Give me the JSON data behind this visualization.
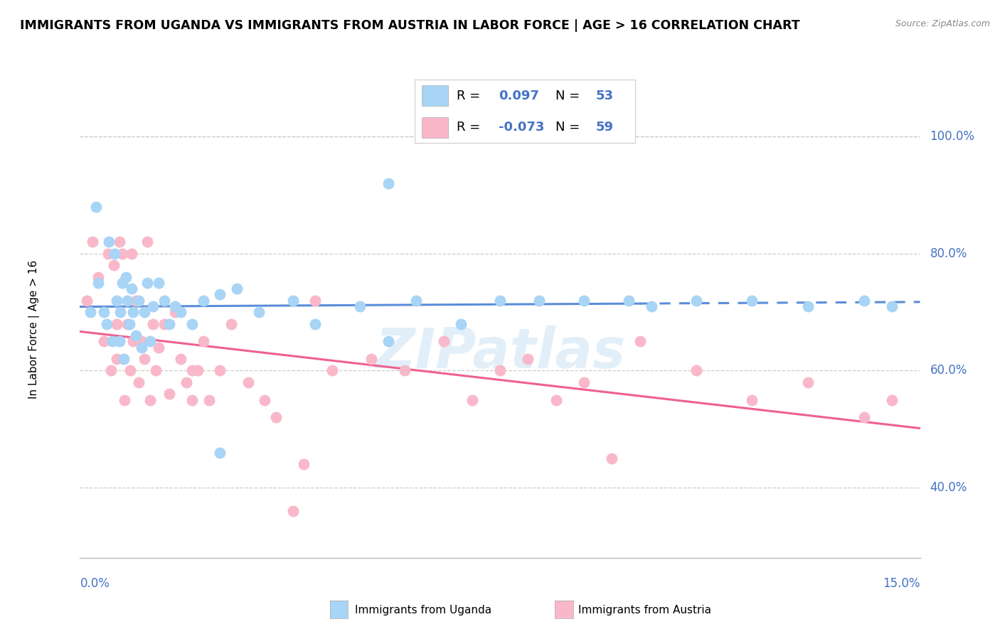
{
  "title": "IMMIGRANTS FROM UGANDA VS IMMIGRANTS FROM AUSTRIA IN LABOR FORCE | AGE > 16 CORRELATION CHART",
  "source": "Source: ZipAtlas.com",
  "ylabel": "In Labor Force | Age > 16",
  "xmin": 0.0,
  "xmax": 15.0,
  "ymin": 28.0,
  "ymax": 106.0,
  "yticks": [
    40.0,
    60.0,
    80.0,
    100.0
  ],
  "ytick_labels": [
    "40.0%",
    "60.0%",
    "80.0%",
    "100.0%"
  ],
  "watermark": "ZIPatlas",
  "legend_line1": "R =  0.097   N = 53",
  "legend_line2": "R = -0.073   N = 59",
  "color_uganda": "#A8D4F5",
  "color_austria": "#F9B8CA",
  "color_trend_uganda": "#5B8DD9",
  "color_trend_austria": "#F06090",
  "color_axis_label": "#4472C4",
  "uganda_x": [
    0.18,
    0.28,
    0.32,
    0.42,
    0.48,
    0.52,
    0.58,
    0.62,
    0.65,
    0.7,
    0.72,
    0.75,
    0.78,
    0.82,
    0.85,
    0.88,
    0.92,
    0.95,
    1.0,
    1.05,
    1.1,
    1.15,
    1.2,
    1.25,
    1.3,
    1.4,
    1.5,
    1.6,
    1.7,
    1.8,
    2.0,
    2.2,
    2.5,
    2.8,
    3.2,
    3.8,
    4.2,
    5.0,
    5.5,
    6.0,
    6.8,
    7.5,
    8.2,
    9.0,
    9.8,
    10.2,
    11.0,
    12.0,
    13.0,
    14.0,
    14.5,
    5.5,
    2.5
  ],
  "uganda_y": [
    70,
    88,
    75,
    70,
    68,
    82,
    65,
    80,
    72,
    65,
    70,
    75,
    62,
    76,
    72,
    68,
    74,
    70,
    66,
    72,
    64,
    70,
    75,
    65,
    71,
    75,
    72,
    68,
    71,
    70,
    68,
    72,
    46,
    74,
    70,
    72,
    68,
    71,
    65,
    72,
    68,
    72,
    72,
    72,
    72,
    71,
    72,
    72,
    71,
    72,
    71,
    92,
    73
  ],
  "austria_x": [
    0.12,
    0.22,
    0.32,
    0.42,
    0.5,
    0.55,
    0.6,
    0.65,
    0.7,
    0.75,
    0.8,
    0.85,
    0.9,
    0.92,
    0.95,
    1.0,
    1.05,
    1.1,
    1.15,
    1.2,
    1.25,
    1.3,
    1.35,
    1.4,
    1.5,
    1.6,
    1.7,
    1.8,
    1.9,
    2.0,
    2.1,
    2.2,
    2.3,
    2.5,
    2.7,
    3.0,
    3.3,
    3.5,
    3.8,
    4.0,
    4.5,
    5.2,
    5.8,
    6.5,
    7.0,
    7.5,
    8.0,
    8.5,
    9.0,
    9.5,
    10.0,
    11.0,
    12.0,
    13.0,
    14.0,
    14.5,
    4.2,
    0.65,
    2.0
  ],
  "austria_y": [
    72,
    82,
    76,
    65,
    80,
    60,
    78,
    62,
    82,
    80,
    55,
    68,
    60,
    80,
    65,
    72,
    58,
    65,
    62,
    82,
    55,
    68,
    60,
    64,
    68,
    56,
    70,
    62,
    58,
    55,
    60,
    65,
    55,
    60,
    68,
    58,
    55,
    52,
    36,
    44,
    60,
    62,
    60,
    65,
    55,
    60,
    62,
    55,
    58,
    45,
    65,
    60,
    55,
    58,
    52,
    55,
    72,
    68,
    60
  ]
}
